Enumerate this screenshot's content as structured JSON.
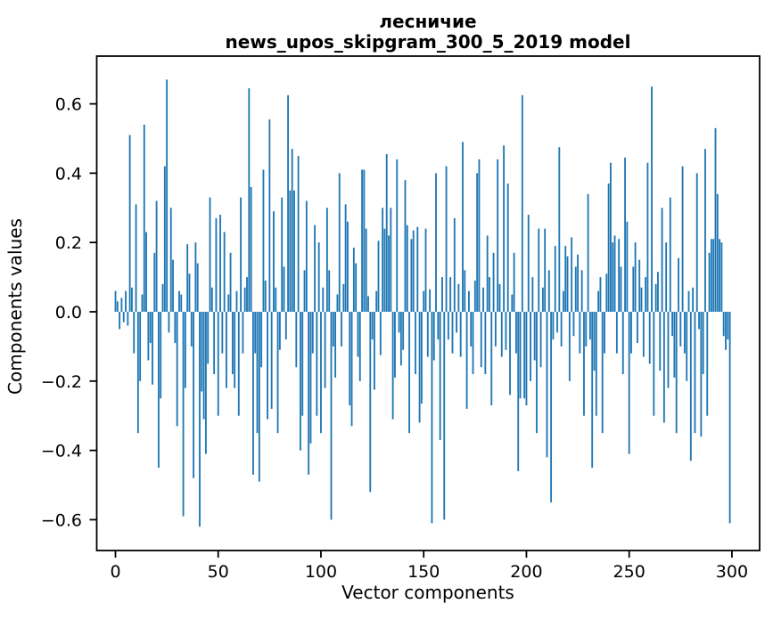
{
  "chart_data": {
    "type": "bar",
    "title_lines": [
      "лесничие",
      "news_upos_skipgram_300_5_2019 model"
    ],
    "title": "лесничие\nnews_upos_skipgram_300_5_2019 model",
    "xlabel": "Vector components",
    "ylabel": "Components values",
    "color": "#1f77b4",
    "grid": false,
    "legend": "none",
    "n_bars": 300,
    "xlim": [
      -9.3,
      313.6
    ],
    "ylim": [
      -0.69,
      0.74
    ],
    "xticks": {
      "values": [
        0,
        50,
        100,
        150,
        200,
        250,
        300
      ],
      "labels": [
        "0",
        "50",
        "100",
        "150",
        "200",
        "250",
        "300"
      ]
    },
    "yticks": {
      "values": [
        0.6,
        0.4,
        0.2,
        0.0,
        -0.2,
        -0.4,
        -0.6
      ],
      "labels": [
        "0.6",
        "0.4",
        "0.2",
        "0.0",
        "−0.2",
        "−0.4",
        "−0.6"
      ]
    },
    "values": [
      0.06,
      0.03,
      -0.05,
      0.04,
      -0.03,
      0.06,
      -0.04,
      0.51,
      0.07,
      -0.12,
      0.31,
      -0.35,
      -0.2,
      0.05,
      0.54,
      0.23,
      -0.14,
      -0.09,
      -0.21,
      0.17,
      0.32,
      -0.45,
      -0.25,
      0.08,
      0.42,
      0.67,
      -0.06,
      0.3,
      0.15,
      -0.09,
      -0.33,
      0.06,
      0.05,
      -0.59,
      -0.22,
      0.195,
      0.11,
      -0.1,
      -0.48,
      0.2,
      0.14,
      -0.62,
      -0.23,
      -0.31,
      -0.41,
      -0.15,
      0.33,
      0.07,
      -0.18,
      0.27,
      -0.3,
      0.28,
      -0.12,
      0.23,
      -0.22,
      0.05,
      0.17,
      -0.18,
      -0.22,
      0.06,
      -0.3,
      0.33,
      -0.12,
      0.07,
      0.1,
      0.645,
      0.36,
      -0.47,
      -0.12,
      -0.35,
      -0.49,
      -0.16,
      0.41,
      0.09,
      -0.31,
      0.555,
      -0.28,
      0.29,
      0.07,
      -0.35,
      -0.11,
      0.33,
      0.13,
      -0.08,
      0.625,
      0.35,
      0.47,
      0.35,
      -0.16,
      0.45,
      -0.4,
      -0.3,
      0.12,
      0.32,
      -0.47,
      -0.38,
      -0.12,
      0.25,
      -0.3,
      0.2,
      -0.35,
      0.07,
      -0.22,
      0.3,
      0.12,
      -0.6,
      -0.1,
      -0.19,
      0.05,
      0.4,
      -0.1,
      0.08,
      0.31,
      0.26,
      -0.27,
      -0.33,
      0.185,
      0.14,
      -0.13,
      -0.2,
      0.41,
      0.41,
      0.24,
      0.045,
      -0.52,
      -0.08,
      -0.225,
      0.06,
      0.205,
      -0.125,
      0.3,
      0.24,
      0.455,
      0.22,
      0.3,
      -0.31,
      -0.19,
      0.44,
      -0.06,
      -0.155,
      -0.11,
      0.38,
      0.25,
      -0.35,
      0.21,
      0.235,
      -0.18,
      0.245,
      -0.32,
      -0.265,
      0.06,
      0.24,
      -0.13,
      0.065,
      -0.61,
      -0.14,
      0.4,
      -0.08,
      -0.37,
      0.1,
      -0.6,
      0.42,
      -0.08,
      0.1,
      -0.12,
      0.27,
      -0.06,
      0.08,
      -0.13,
      0.49,
      0.12,
      -0.28,
      0.06,
      -0.1,
      -0.18,
      0.09,
      0.4,
      0.44,
      -0.16,
      0.07,
      -0.18,
      0.22,
      0.1,
      -0.27,
      0.17,
      -0.1,
      0.44,
      0.08,
      -0.13,
      0.48,
      -0.11,
      0.37,
      -0.24,
      0.05,
      0.17,
      -0.12,
      -0.46,
      -0.25,
      0.625,
      -0.25,
      -0.27,
      0.28,
      -0.2,
      0.1,
      -0.14,
      -0.35,
      0.24,
      -0.16,
      0.07,
      0.24,
      -0.42,
      0.12,
      -0.55,
      -0.08,
      0.19,
      -0.06,
      0.475,
      -0.1,
      0.06,
      0.19,
      0.16,
      -0.2,
      0.215,
      -0.07,
      0.13,
      0.165,
      -0.12,
      0.12,
      -0.3,
      -0.1,
      0.34,
      -0.08,
      -0.45,
      -0.17,
      -0.3,
      0.06,
      0.1,
      -0.35,
      -0.12,
      0.11,
      0.37,
      0.43,
      0.2,
      0.22,
      -0.12,
      0.21,
      0.13,
      -0.18,
      0.445,
      0.26,
      -0.41,
      -0.12,
      0.13,
      0.2,
      -0.09,
      0.15,
      0.07,
      -0.13,
      0.1,
      0.43,
      -0.15,
      0.65,
      -0.3,
      0.08,
      0.115,
      -0.17,
      0.3,
      -0.32,
      0.2,
      -0.22,
      0.33,
      -0.07,
      -0.19,
      -0.35,
      0.155,
      -0.1,
      0.42,
      -0.12,
      -0.2,
      0.06,
      -0.43,
      0.07,
      -0.35,
      0.4,
      -0.05,
      -0.36,
      -0.18,
      0.47,
      -0.3,
      0.17,
      0.21,
      0.21,
      0.53,
      0.34,
      0.21,
      0.2,
      -0.07,
      -0.11,
      -0.08,
      -0.61
    ]
  }
}
